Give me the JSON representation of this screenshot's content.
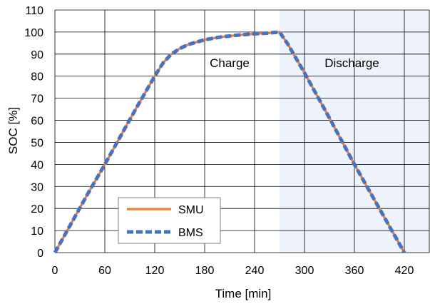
{
  "chart_data": {
    "type": "line",
    "xlabel": "Time [min]",
    "ylabel": "SOC [%]",
    "xlim": [
      0,
      450
    ],
    "ylim": [
      0,
      110
    ],
    "x_ticks": [
      0,
      60,
      120,
      180,
      240,
      300,
      360,
      420
    ],
    "y_ticks": [
      0,
      10,
      20,
      30,
      40,
      50,
      60,
      70,
      80,
      90,
      100,
      110
    ],
    "grid": true,
    "legend_position": "bottom-left",
    "shaded_region": {
      "x_from": 270,
      "x_to": 450,
      "color": "#eef2fa"
    },
    "annotations": [
      {
        "text": "Charge",
        "x": 210,
        "y": 86
      },
      {
        "text": "Discharge",
        "x": 357,
        "y": 86
      }
    ],
    "series": [
      {
        "name": "SMU",
        "color": "#ed7d31",
        "style": "solid",
        "x": [
          0,
          20,
          40,
          60,
          80,
          100,
          120,
          130,
          140,
          150,
          160,
          180,
          200,
          220,
          240,
          255,
          270,
          280,
          300,
          330,
          360,
          390,
          420
        ],
        "y": [
          0,
          13.5,
          27,
          40,
          53.5,
          67,
          80,
          86,
          90,
          92.5,
          94.3,
          96.5,
          97.8,
          98.6,
          99.2,
          99.5,
          100,
          94.5,
          81.5,
          61,
          40,
          20,
          0
        ]
      },
      {
        "name": "BMS",
        "color": "#4472c4",
        "style": "dashed",
        "x": [
          0,
          20,
          40,
          60,
          80,
          100,
          120,
          130,
          140,
          150,
          160,
          180,
          200,
          220,
          240,
          255,
          270,
          280,
          300,
          330,
          360,
          390,
          420
        ],
        "y": [
          0,
          13.5,
          27,
          40,
          53.5,
          67,
          80,
          86,
          90,
          92.5,
          94.3,
          96.5,
          97.8,
          98.6,
          99.2,
          99.5,
          100,
          94.5,
          81.5,
          61,
          40,
          20,
          0
        ]
      }
    ]
  }
}
